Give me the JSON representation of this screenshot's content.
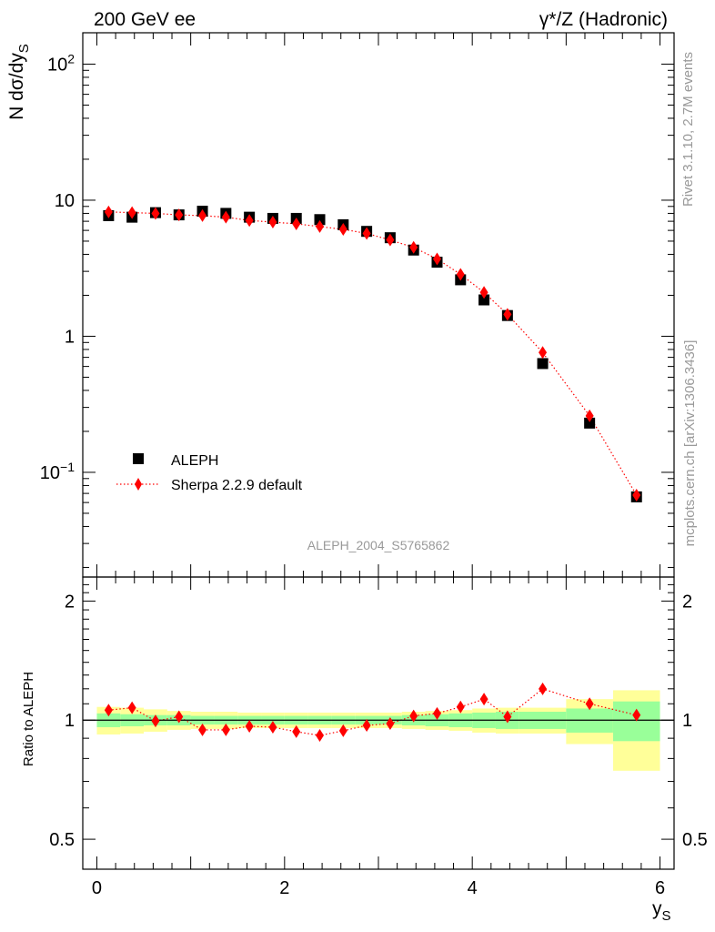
{
  "header": {
    "left": "200 GeV ee",
    "right": "γ*/Z (Hadronic)"
  },
  "side": {
    "rivet": "Rivet 3.1.10,  2.7M events",
    "mcplots": "mcplots.cern.ch [arXiv:1306.3436]"
  },
  "analysis_label": "ALEPH_2004_S5765862",
  "colors": {
    "data": "#000000",
    "mc": "#ff0000",
    "band_inner": "#99ff99",
    "band_outer": "#ffff99"
  },
  "chart_data": [
    {
      "type": "scatter",
      "ylabel": "N dσ/dy",
      "ylabel_sub": "S",
      "yscale": "log",
      "xlim": [
        -0.15,
        6.15
      ],
      "ylim": [
        0.017,
        170
      ],
      "y_ticks": [
        {
          "value": 100,
          "base": "10",
          "exp": "2"
        },
        {
          "value": 10,
          "base": "10",
          "exp": ""
        },
        {
          "value": 1,
          "base": "1",
          "exp": ""
        },
        {
          "value": 0.1,
          "base": "10",
          "exp": "−1"
        }
      ],
      "legend": {
        "placement": "bottom-left"
      },
      "series": [
        {
          "name": "ALEPH",
          "marker": "square",
          "x": [
            0.125,
            0.375,
            0.625,
            0.875,
            1.125,
            1.375,
            1.625,
            1.875,
            2.125,
            2.375,
            2.625,
            2.875,
            3.125,
            3.375,
            3.625,
            3.875,
            4.125,
            4.375,
            4.75,
            5.25,
            5.75
          ],
          "y": [
            7.7,
            7.5,
            8.1,
            7.8,
            8.3,
            8.0,
            7.5,
            7.35,
            7.35,
            7.2,
            6.6,
            5.9,
            5.3,
            4.3,
            3.5,
            2.6,
            1.85,
            1.42,
            0.63,
            0.23,
            0.066
          ]
        },
        {
          "name": "Sherpa 2.2.9 default",
          "marker": "diamond",
          "line": "dotted",
          "x": [
            0.125,
            0.375,
            0.625,
            0.875,
            1.125,
            1.375,
            1.625,
            1.875,
            2.125,
            2.375,
            2.625,
            2.875,
            3.125,
            3.375,
            3.625,
            3.875,
            4.125,
            4.375,
            4.75,
            5.25,
            5.75
          ],
          "y": [
            8.2,
            8.1,
            8.0,
            7.8,
            7.7,
            7.5,
            7.1,
            6.9,
            6.7,
            6.4,
            6.1,
            5.7,
            5.1,
            4.5,
            3.7,
            2.85,
            2.1,
            1.45,
            0.76,
            0.26,
            0.068
          ]
        }
      ]
    },
    {
      "type": "line",
      "ylabel": "Ratio to ALEPH",
      "xlabel": "y",
      "xlabel_sub": "S",
      "xlim": [
        -0.15,
        6.15
      ],
      "ylim": [
        0.42,
        2.3
      ],
      "x_ticks": [
        0,
        2,
        4,
        6
      ],
      "y_ticks": [
        0.5,
        1,
        2
      ],
      "reference": 1,
      "bands": {
        "edges": [
          0,
          0.25,
          0.5,
          0.75,
          1,
          1.25,
          1.5,
          1.75,
          2,
          2.25,
          2.5,
          2.75,
          3,
          3.25,
          3.5,
          3.75,
          4,
          4.25,
          4.5,
          5,
          5.5,
          6
        ],
        "inner": [
          [
            0.96,
            1.04
          ],
          [
            0.965,
            1.035
          ],
          [
            0.97,
            1.03
          ],
          [
            0.97,
            1.03
          ],
          [
            0.975,
            1.025
          ],
          [
            0.975,
            1.025
          ],
          [
            0.975,
            1.025
          ],
          [
            0.975,
            1.025
          ],
          [
            0.975,
            1.025
          ],
          [
            0.975,
            1.025
          ],
          [
            0.975,
            1.025
          ],
          [
            0.975,
            1.025
          ],
          [
            0.975,
            1.025
          ],
          [
            0.97,
            1.03
          ],
          [
            0.965,
            1.035
          ],
          [
            0.96,
            1.04
          ],
          [
            0.955,
            1.045
          ],
          [
            0.95,
            1.05
          ],
          [
            0.95,
            1.05
          ],
          [
            0.93,
            1.07
          ],
          [
            0.885,
            1.115
          ]
        ],
        "outer": [
          [
            0.92,
            1.08
          ],
          [
            0.925,
            1.075
          ],
          [
            0.935,
            1.065
          ],
          [
            0.945,
            1.055
          ],
          [
            0.95,
            1.05
          ],
          [
            0.95,
            1.05
          ],
          [
            0.955,
            1.045
          ],
          [
            0.955,
            1.045
          ],
          [
            0.955,
            1.045
          ],
          [
            0.955,
            1.045
          ],
          [
            0.955,
            1.045
          ],
          [
            0.955,
            1.045
          ],
          [
            0.955,
            1.045
          ],
          [
            0.95,
            1.05
          ],
          [
            0.945,
            1.055
          ],
          [
            0.94,
            1.06
          ],
          [
            0.93,
            1.07
          ],
          [
            0.925,
            1.075
          ],
          [
            0.925,
            1.075
          ],
          [
            0.87,
            1.13
          ],
          [
            0.745,
            1.19
          ]
        ]
      },
      "series": [
        {
          "name": "Sherpa 2.2.9 default",
          "marker": "diamond",
          "line": "dotted",
          "x": [
            0.125,
            0.375,
            0.625,
            0.875,
            1.125,
            1.375,
            1.625,
            1.875,
            2.125,
            2.375,
            2.625,
            2.875,
            3.125,
            3.375,
            3.625,
            3.875,
            4.125,
            4.375,
            4.75,
            5.25,
            5.75
          ],
          "y": [
            1.06,
            1.075,
            0.995,
            1.02,
            0.945,
            0.945,
            0.965,
            0.96,
            0.935,
            0.915,
            0.94,
            0.97,
            0.98,
            1.025,
            1.04,
            1.08,
            1.13,
            1.02,
            1.2,
            1.1,
            1.03
          ]
        }
      ]
    }
  ]
}
